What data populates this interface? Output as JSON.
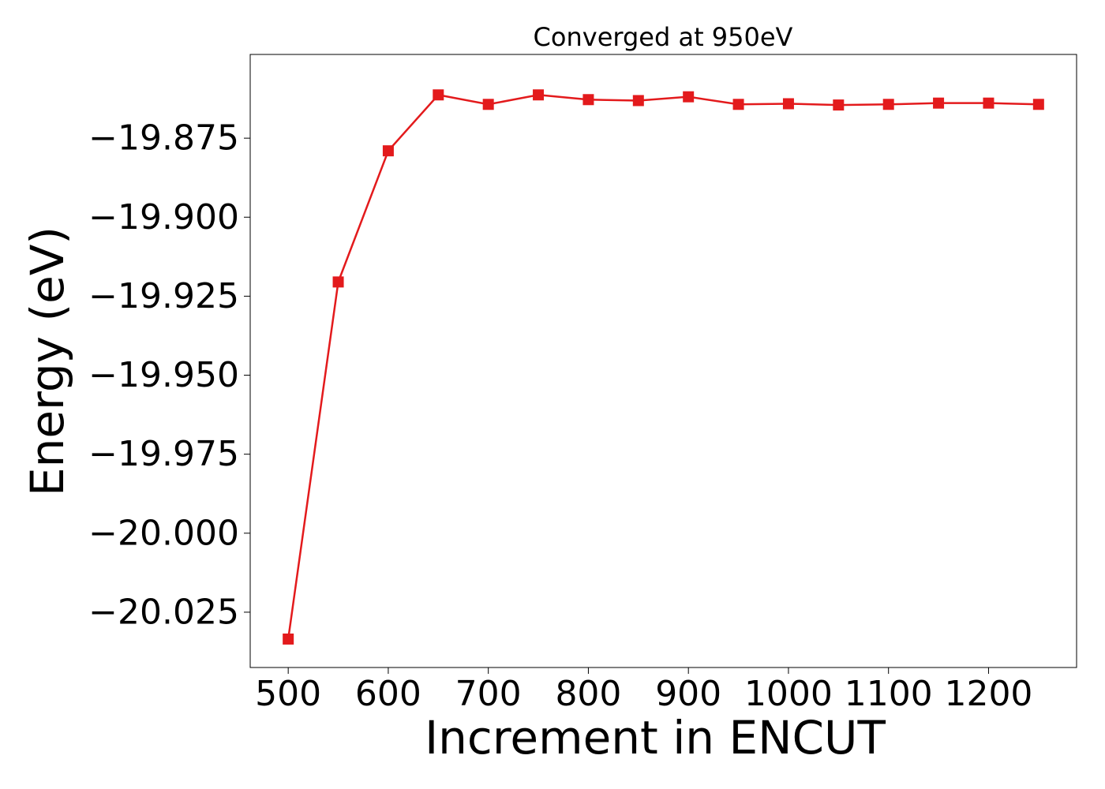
{
  "chart_data": {
    "type": "line",
    "title": "Converged at 950eV",
    "xlabel": "Increment in ENCUT",
    "ylabel": "Energy (eV)",
    "xlim": [
      462,
      1288
    ],
    "ylim": [
      -20.0425,
      -19.8485
    ],
    "xticks": [
      500,
      600,
      700,
      800,
      900,
      1000,
      1100,
      1200
    ],
    "xtick_labels": [
      "500",
      "600",
      "700",
      "800",
      "900",
      "1000",
      "1100",
      "1200"
    ],
    "yticks": [
      -19.875,
      -19.9,
      -19.925,
      -19.95,
      -19.975,
      -20.0,
      -20.025
    ],
    "ytick_labels": [
      "−19.875",
      "−19.900",
      "−19.925",
      "−19.950",
      "−19.975",
      "−20.000",
      "−20.025"
    ],
    "grid": false,
    "legend": "none",
    "series": [
      {
        "color": "#e31a1c",
        "marker": "square",
        "x": [
          500,
          550,
          600,
          650,
          700,
          750,
          800,
          850,
          900,
          950,
          1000,
          1050,
          1100,
          1150,
          1200,
          1250
        ],
        "y": [
          -20.0335,
          -19.9205,
          -19.879,
          -19.8613,
          -19.8643,
          -19.8613,
          -19.8628,
          -19.8631,
          -19.8619,
          -19.8643,
          -19.8641,
          -19.8645,
          -19.8643,
          -19.8639,
          -19.8639,
          -19.8643
        ]
      }
    ]
  }
}
